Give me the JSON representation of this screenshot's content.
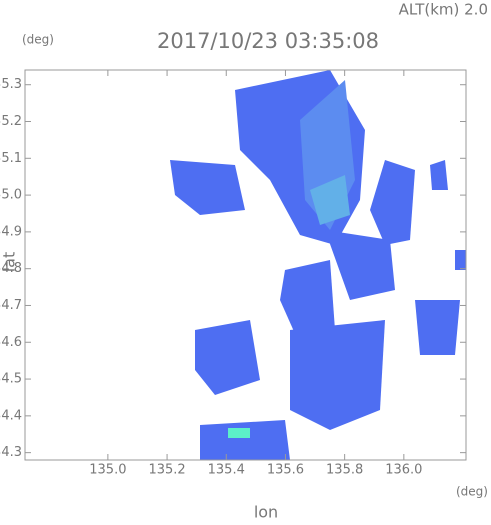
{
  "chart_data": {
    "type": "radar-map",
    "title": "2017/10/23 03:35:08",
    "annotation": "ALT(km) 2.0",
    "y_unit": "(deg)",
    "x_unit": "(deg)",
    "x_label": "lon",
    "y_label": "lat",
    "xlim": [
      134.72,
      136.21
    ],
    "ylim": [
      34.28,
      35.34
    ],
    "xticks": [
      {
        "value": 135,
        "label": "135.0"
      },
      135.2,
      135.4,
      135.6,
      135.8,
      {
        "value": 136,
        "label": "136.0"
      }
    ],
    "yticks": [
      34.3,
      34.4,
      34.5,
      34.6,
      34.7,
      34.8,
      34.9,
      {
        "value": 35,
        "label": "35.0"
      },
      35.1,
      35.2,
      35.3
    ]
  }
}
